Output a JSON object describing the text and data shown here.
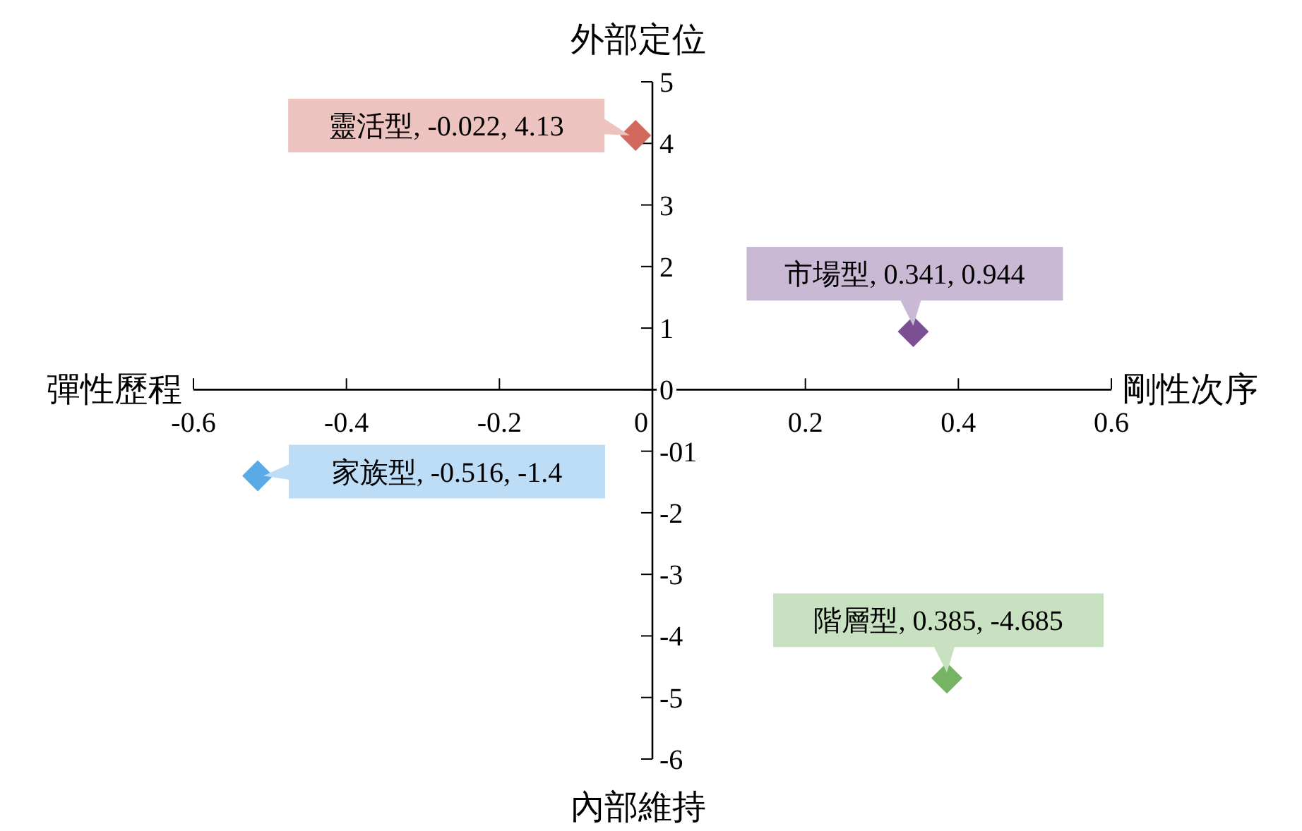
{
  "chart_data": {
    "type": "scatter",
    "xlabel": "剛性次序",
    "ylabel": "外部定位",
    "annotations": [
      "彈性歷程",
      "內部維持",
      {
        "text": "靈活型, -0.022, 4.13",
        "x": -0.022,
        "y": 4.13
      },
      {
        "text": "市場型, 0.341, 0.944",
        "x": 0.341,
        "y": 0.944
      },
      {
        "text": "家族型, -0.516, -1.4",
        "x": -0.516,
        "y": -1.4
      },
      {
        "text": "階層型, 0.385, -4.685",
        "x": 0.385,
        "y": -4.685
      }
    ],
    "xlim": [
      -0.6,
      0.6
    ],
    "xticks": [
      -0.6,
      -0.4,
      -0.2,
      {
        "value": 0,
        "label": "0"
      },
      0.2,
      0.4,
      0.6
    ],
    "ylim": [
      -6,
      5
    ],
    "yticks": [
      -6,
      -5,
      -4,
      -3,
      -2,
      {
        "value": -1,
        "label": "-01"
      },
      0,
      1,
      2,
      3,
      4,
      5
    ],
    "series": [
      {
        "color": "#d2695e",
        "x": [
          -0.022
        ],
        "values": [
          4.13
        ]
      },
      {
        "color": "#7b4f93",
        "x": [
          0.341
        ],
        "values": [
          0.944
        ]
      },
      {
        "color": "#5aaae8",
        "x": [
          -0.516
        ],
        "values": [
          -1.4
        ]
      },
      {
        "color": "#76b463",
        "x": [
          0.385
        ],
        "values": [
          -4.685
        ]
      }
    ],
    "marker": "diamond",
    "grid": false
  }
}
